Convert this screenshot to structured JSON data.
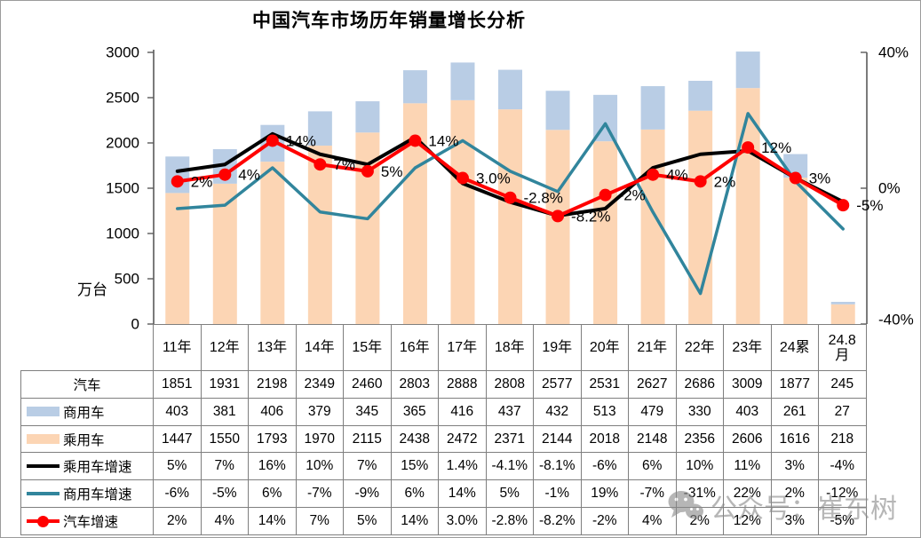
{
  "title": "中国汽车市场历年销量增长分析",
  "watermark": {
    "text": "公众号：崔东树"
  },
  "chart_data": {
    "type": "combo-bar-line",
    "title": "中国汽车市场历年销量增长分析",
    "categories": [
      "11年",
      "12年",
      "13年",
      "14年",
      "15年",
      "16年",
      "17年",
      "18年",
      "19年",
      "20年",
      "21年",
      "22年",
      "23年",
      "24累",
      "24.8月"
    ],
    "left_axis": {
      "title": "万台",
      "min": 0,
      "max": 3000,
      "ticks": [
        0,
        500,
        1000,
        1500,
        2000,
        2500,
        3000
      ]
    },
    "right_axis": {
      "min": -40,
      "max": 40,
      "ticks": [
        {
          "value": 40,
          "label": "40%"
        },
        {
          "value": 0,
          "label": "0%"
        },
        {
          "value": -40,
          "label": "-40%"
        }
      ]
    },
    "series": [
      {
        "name": "汽车",
        "legend": "none",
        "color": "",
        "plot": "none",
        "values": [
          "1851",
          "1931",
          "2198",
          "2349",
          "2460",
          "2803",
          "2888",
          "2808",
          "2577",
          "2531",
          "2627",
          "2686",
          "3009",
          "1877",
          "245"
        ]
      },
      {
        "name": "商用车",
        "legend": "bar",
        "color": "#B9CDE5",
        "plot": "bar-top",
        "values": [
          "403",
          "381",
          "406",
          "379",
          "345",
          "365",
          "416",
          "437",
          "432",
          "513",
          "479",
          "330",
          "403",
          "261",
          "27"
        ]
      },
      {
        "name": "乘用车",
        "legend": "bar",
        "color": "#FCD5B4",
        "plot": "bar-base",
        "values": [
          "1447",
          "1550",
          "1793",
          "1970",
          "2115",
          "2438",
          "2472",
          "2371",
          "2144",
          "2018",
          "2148",
          "2356",
          "2606",
          "1616",
          "218"
        ]
      },
      {
        "name": "乘用车增速",
        "legend": "line",
        "color": "#000000",
        "plot": "line",
        "stroke_width": 4,
        "values": [
          "5%",
          "7%",
          "16%",
          "10%",
          "7%",
          "15%",
          "1.4%",
          "-4.1%",
          "-8.1%",
          "-6%",
          "6%",
          "10%",
          "11%",
          "3%",
          "-4%"
        ]
      },
      {
        "name": "商用车增速",
        "legend": "line",
        "color": "#31859C",
        "plot": "line",
        "stroke_width": 3.5,
        "values": [
          "-6%",
          "-5%",
          "6%",
          "-7%",
          "-9%",
          "6%",
          "14%",
          "5%",
          "-1%",
          "19%",
          "-7%",
          "-31%",
          "22%",
          "2%",
          "-12%"
        ]
      },
      {
        "name": "汽车增速",
        "legend": "line-marker",
        "color": "#FF0000",
        "plot": "line",
        "stroke_width": 4,
        "markers": true,
        "show_labels": true,
        "values": [
          "2%",
          "4%",
          "14%",
          "7%",
          "5%",
          "14%",
          "3.0%",
          "-2.8%",
          "-8.2%",
          "-2%",
          "4%",
          "2%",
          "12%",
          "3%",
          "-5%"
        ]
      }
    ]
  }
}
